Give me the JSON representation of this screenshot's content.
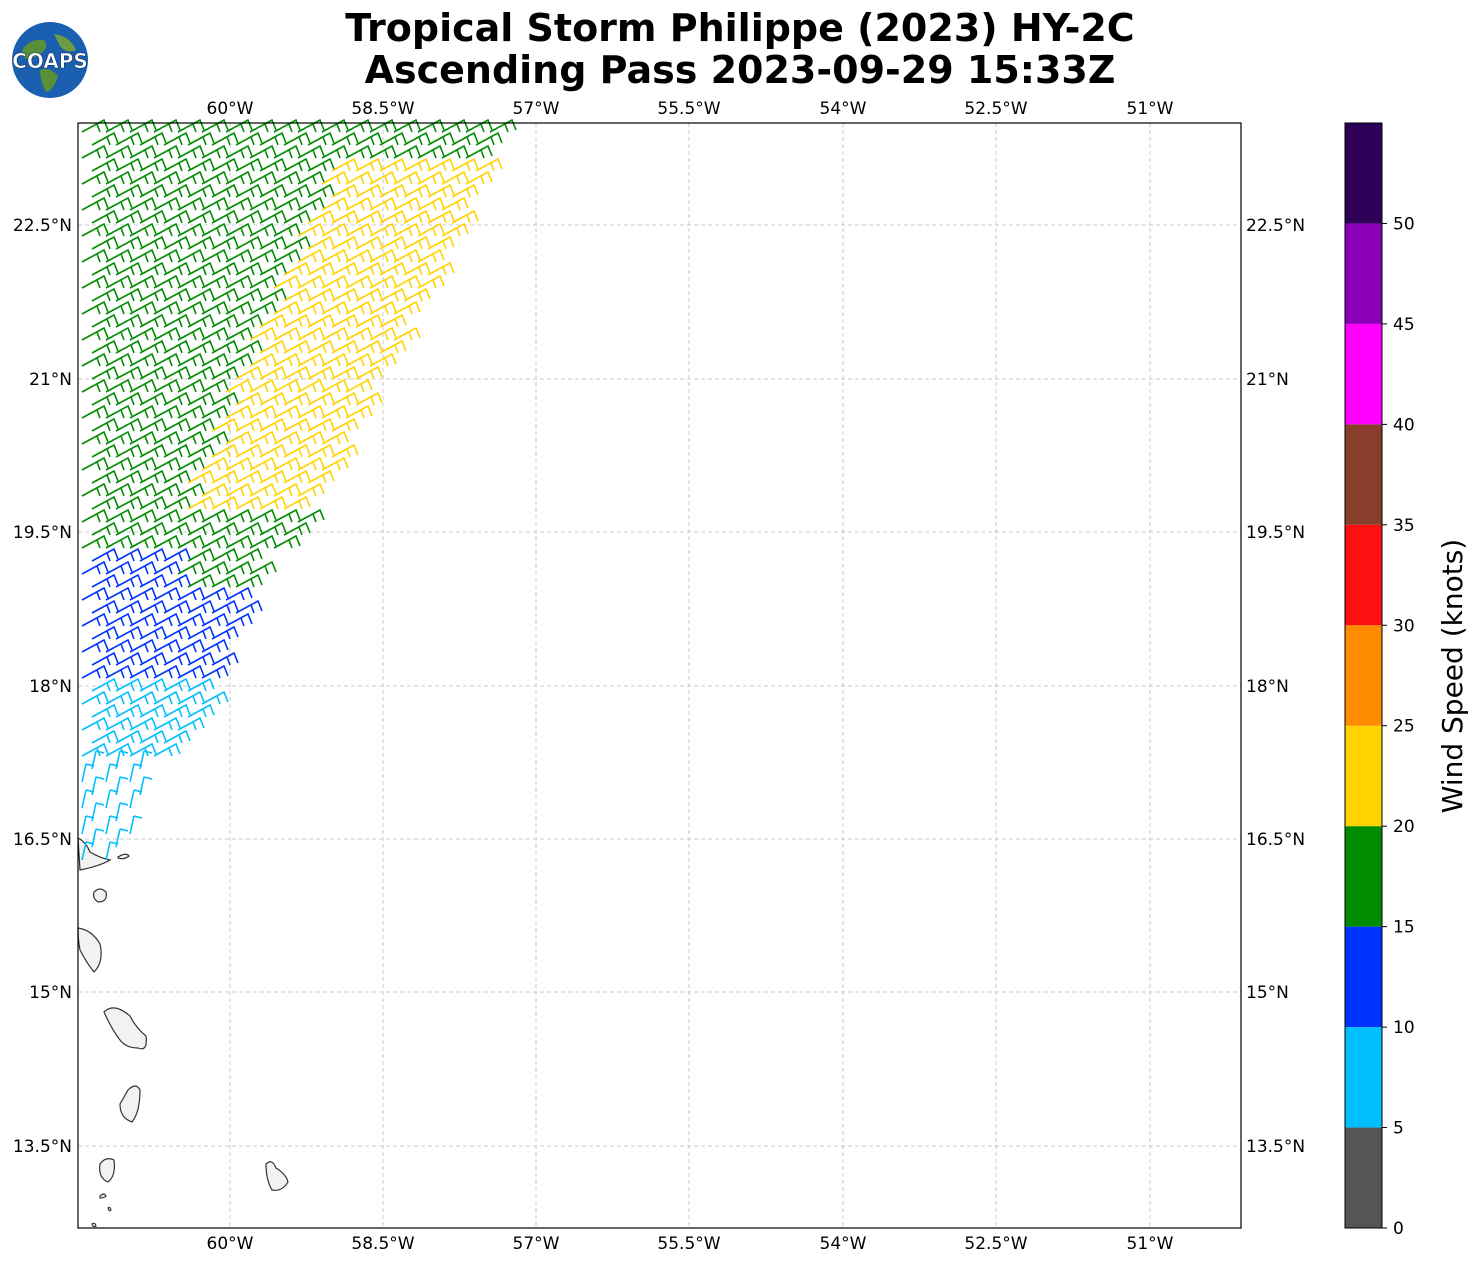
{
  "title": {
    "line1": "Tropical Storm Philippe (2023) HY-2C",
    "line2": "Ascending Pass 2023-09-29 15:33Z"
  },
  "logo": {
    "text": "COAPS",
    "icon": "coaps-globe-logo"
  },
  "map": {
    "lon_ticks": [
      "60°W",
      "58.5°W",
      "57°W",
      "55.5°W",
      "54°W",
      "52.5°W",
      "51°W"
    ],
    "lat_ticks": [
      "22.5°N",
      "21°N",
      "19.5°N",
      "18°N",
      "16.5°N",
      "15°N",
      "13.5°N"
    ],
    "gridlines": true
  },
  "colorbar": {
    "label": "Wind Speed (knots)",
    "ticks": [
      "0",
      "5",
      "10",
      "15",
      "20",
      "25",
      "30",
      "35",
      "40",
      "45",
      "50"
    ],
    "bins": [
      {
        "min": 0,
        "max": 5,
        "color": "#555555"
      },
      {
        "min": 5,
        "max": 10,
        "color": "#00bfff"
      },
      {
        "min": 10,
        "max": 15,
        "color": "#0033ff"
      },
      {
        "min": 15,
        "max": 20,
        "color": "#008c00"
      },
      {
        "min": 20,
        "max": 25,
        "color": "#ffd200"
      },
      {
        "min": 25,
        "max": 30,
        "color": "#ff8c00"
      },
      {
        "min": 30,
        "max": 35,
        "color": "#ff1010"
      },
      {
        "min": 35,
        "max": 40,
        "color": "#883e2a"
      },
      {
        "min": 40,
        "max": 45,
        "color": "#ff00ff"
      },
      {
        "min": 45,
        "max": 50,
        "color": "#8a00b8"
      },
      {
        "min": 50,
        "max": 55,
        "color": "#2e0057"
      }
    ]
  },
  "wind_barbs": {
    "bands": [
      {
        "speed_kt": 17,
        "color": "#008c00",
        "region": "north-west swath"
      },
      {
        "speed_kt": 22,
        "color": "#ffd200",
        "region": "north-east swath edge"
      },
      {
        "speed_kt": 12,
        "color": "#0033ff",
        "region": "central swath"
      },
      {
        "speed_kt": 7,
        "color": "#00bfff",
        "region": "southern swath"
      }
    ]
  }
}
